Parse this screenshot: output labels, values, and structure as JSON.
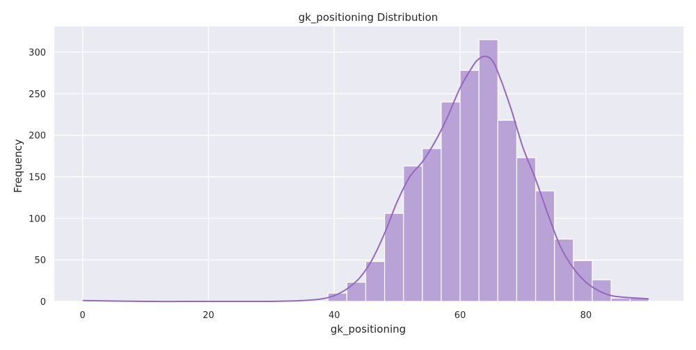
{
  "chart_data": {
    "type": "bar",
    "title": "gk_positioning Distribution",
    "xlabel": "gk_positioning",
    "ylabel": "Frequency",
    "xlim": [
      -4.5,
      95.5
    ],
    "ylim": [
      0,
      331
    ],
    "xticks": [
      0,
      20,
      40,
      60,
      80
    ],
    "yticks": [
      0,
      50,
      100,
      150,
      200,
      250,
      300
    ],
    "grid": true,
    "legend": "none",
    "colors": {
      "background": "#eaeaf2",
      "grid": "#ffffff",
      "bar_fill": "#b9a2d6",
      "bar_edge": "#ffffff",
      "kde_line": "#9467bd"
    },
    "bin_width": 3.0,
    "bins": [
      {
        "x0": 0,
        "x1": 3,
        "count": 1
      },
      {
        "x0": 39,
        "x1": 42,
        "count": 10
      },
      {
        "x0": 42,
        "x1": 45,
        "count": 23
      },
      {
        "x0": 45,
        "x1": 48,
        "count": 48
      },
      {
        "x0": 48,
        "x1": 51,
        "count": 106
      },
      {
        "x0": 51,
        "x1": 54,
        "count": 163
      },
      {
        "x0": 54,
        "x1": 57,
        "count": 184
      },
      {
        "x0": 57,
        "x1": 60,
        "count": 240
      },
      {
        "x0": 60,
        "x1": 63,
        "count": 278
      },
      {
        "x0": 63,
        "x1": 66,
        "count": 315
      },
      {
        "x0": 66,
        "x1": 69,
        "count": 218
      },
      {
        "x0": 69,
        "x1": 72,
        "count": 173
      },
      {
        "x0": 72,
        "x1": 75,
        "count": 133
      },
      {
        "x0": 75,
        "x1": 78,
        "count": 75
      },
      {
        "x0": 78,
        "x1": 81,
        "count": 49
      },
      {
        "x0": 81,
        "x1": 84,
        "count": 26
      },
      {
        "x0": 84,
        "x1": 87,
        "count": 4
      },
      {
        "x0": 87,
        "x1": 90,
        "count": 4
      }
    ],
    "kde": {
      "x": [
        0,
        10,
        20,
        30,
        35,
        38,
        40,
        42,
        44,
        46,
        48,
        50,
        52,
        54,
        56,
        58,
        60,
        62,
        63,
        64,
        65,
        66,
        68,
        70,
        72,
        74,
        76,
        78,
        80,
        82,
        84,
        86,
        88,
        90
      ],
      "y": [
        1,
        0,
        0,
        0,
        1,
        3,
        7,
        15,
        28,
        50,
        82,
        120,
        150,
        168,
        192,
        222,
        257,
        283,
        292,
        295,
        291,
        276,
        234,
        185,
        147,
        104,
        65,
        40,
        23,
        13,
        7,
        5,
        4,
        3
      ]
    }
  }
}
